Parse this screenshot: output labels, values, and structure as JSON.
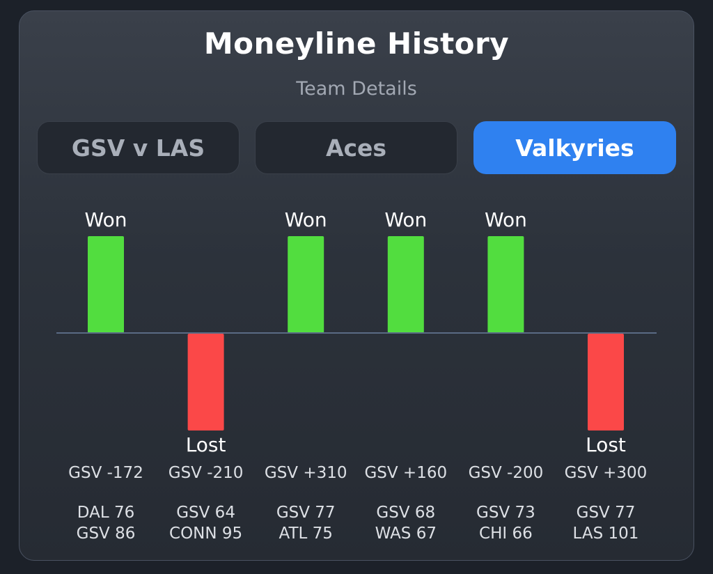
{
  "header": {
    "title": "Moneyline History",
    "subtitle": "Team Details"
  },
  "tabs": [
    {
      "label": "GSV v LAS",
      "active": false
    },
    {
      "label": "Aces",
      "active": false
    },
    {
      "label": "Valkyries",
      "active": true
    }
  ],
  "colors": {
    "won": "#52dd3f",
    "lost": "#fb4848",
    "accent": "#2f81f0",
    "baseline": "#5a6b85"
  },
  "chart_data": {
    "type": "bar",
    "categories": [
      "GSV -172",
      "GSV -210",
      "GSV +310",
      "GSV +160",
      "GSV -200",
      "GSV +300"
    ],
    "values": [
      1,
      -1,
      1,
      1,
      1,
      -1
    ],
    "result_labels": [
      "Won",
      "Lost",
      "Won",
      "Won",
      "Won",
      "Lost"
    ],
    "scores": [
      [
        "DAL 76",
        "GSV 86"
      ],
      [
        "GSV 64",
        "CONN 95"
      ],
      [
        "GSV 77",
        "ATL 75"
      ],
      [
        "GSV 68",
        "WAS 67"
      ],
      [
        "GSV 73",
        "CHI 66"
      ],
      [
        "GSV 77",
        "LAS 101"
      ]
    ],
    "ylim": [
      -1,
      1
    ]
  }
}
